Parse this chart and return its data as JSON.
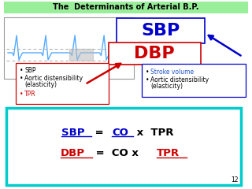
{
  "title": "The  Determinants of Arterial B.P.",
  "title_bg": "#99ee99",
  "bg_color": "#ffffff",
  "sbp_label": "SBP",
  "dbp_label": "DBP",
  "sbp_color": "#0000cc",
  "dbp_color": "#cc0000",
  "left_box_lines": [
    "SBP",
    "Aortic distensibility",
    "(elasticity)",
    "TPR"
  ],
  "left_tpr_color": "#cc0000",
  "right_box_lines": [
    "Stroke volume",
    "Aortic distensibility",
    "(elasticity)"
  ],
  "right_stroke_color": "#2255cc",
  "formula_box_color": "#00cccc",
  "formula1": [
    {
      "text": "SBP",
      "color": "#0000cc",
      "underline": true
    },
    {
      "text": " = ",
      "color": "#000000",
      "underline": false
    },
    {
      "text": "CO",
      "color": "#0000cc",
      "underline": true
    },
    {
      "text": " x  TPR",
      "color": "#000000",
      "underline": false
    }
  ],
  "formula2": [
    {
      "text": "DBP",
      "color": "#cc0000",
      "underline": true
    },
    {
      "text": " =  CO x ",
      "color": "#000000",
      "underline": false
    },
    {
      "text": "TPR",
      "color": "#cc0000",
      "underline": true
    }
  ],
  "waveform_color": "#55aaff",
  "dash_color": "#aaaaaa",
  "page_num": "12"
}
